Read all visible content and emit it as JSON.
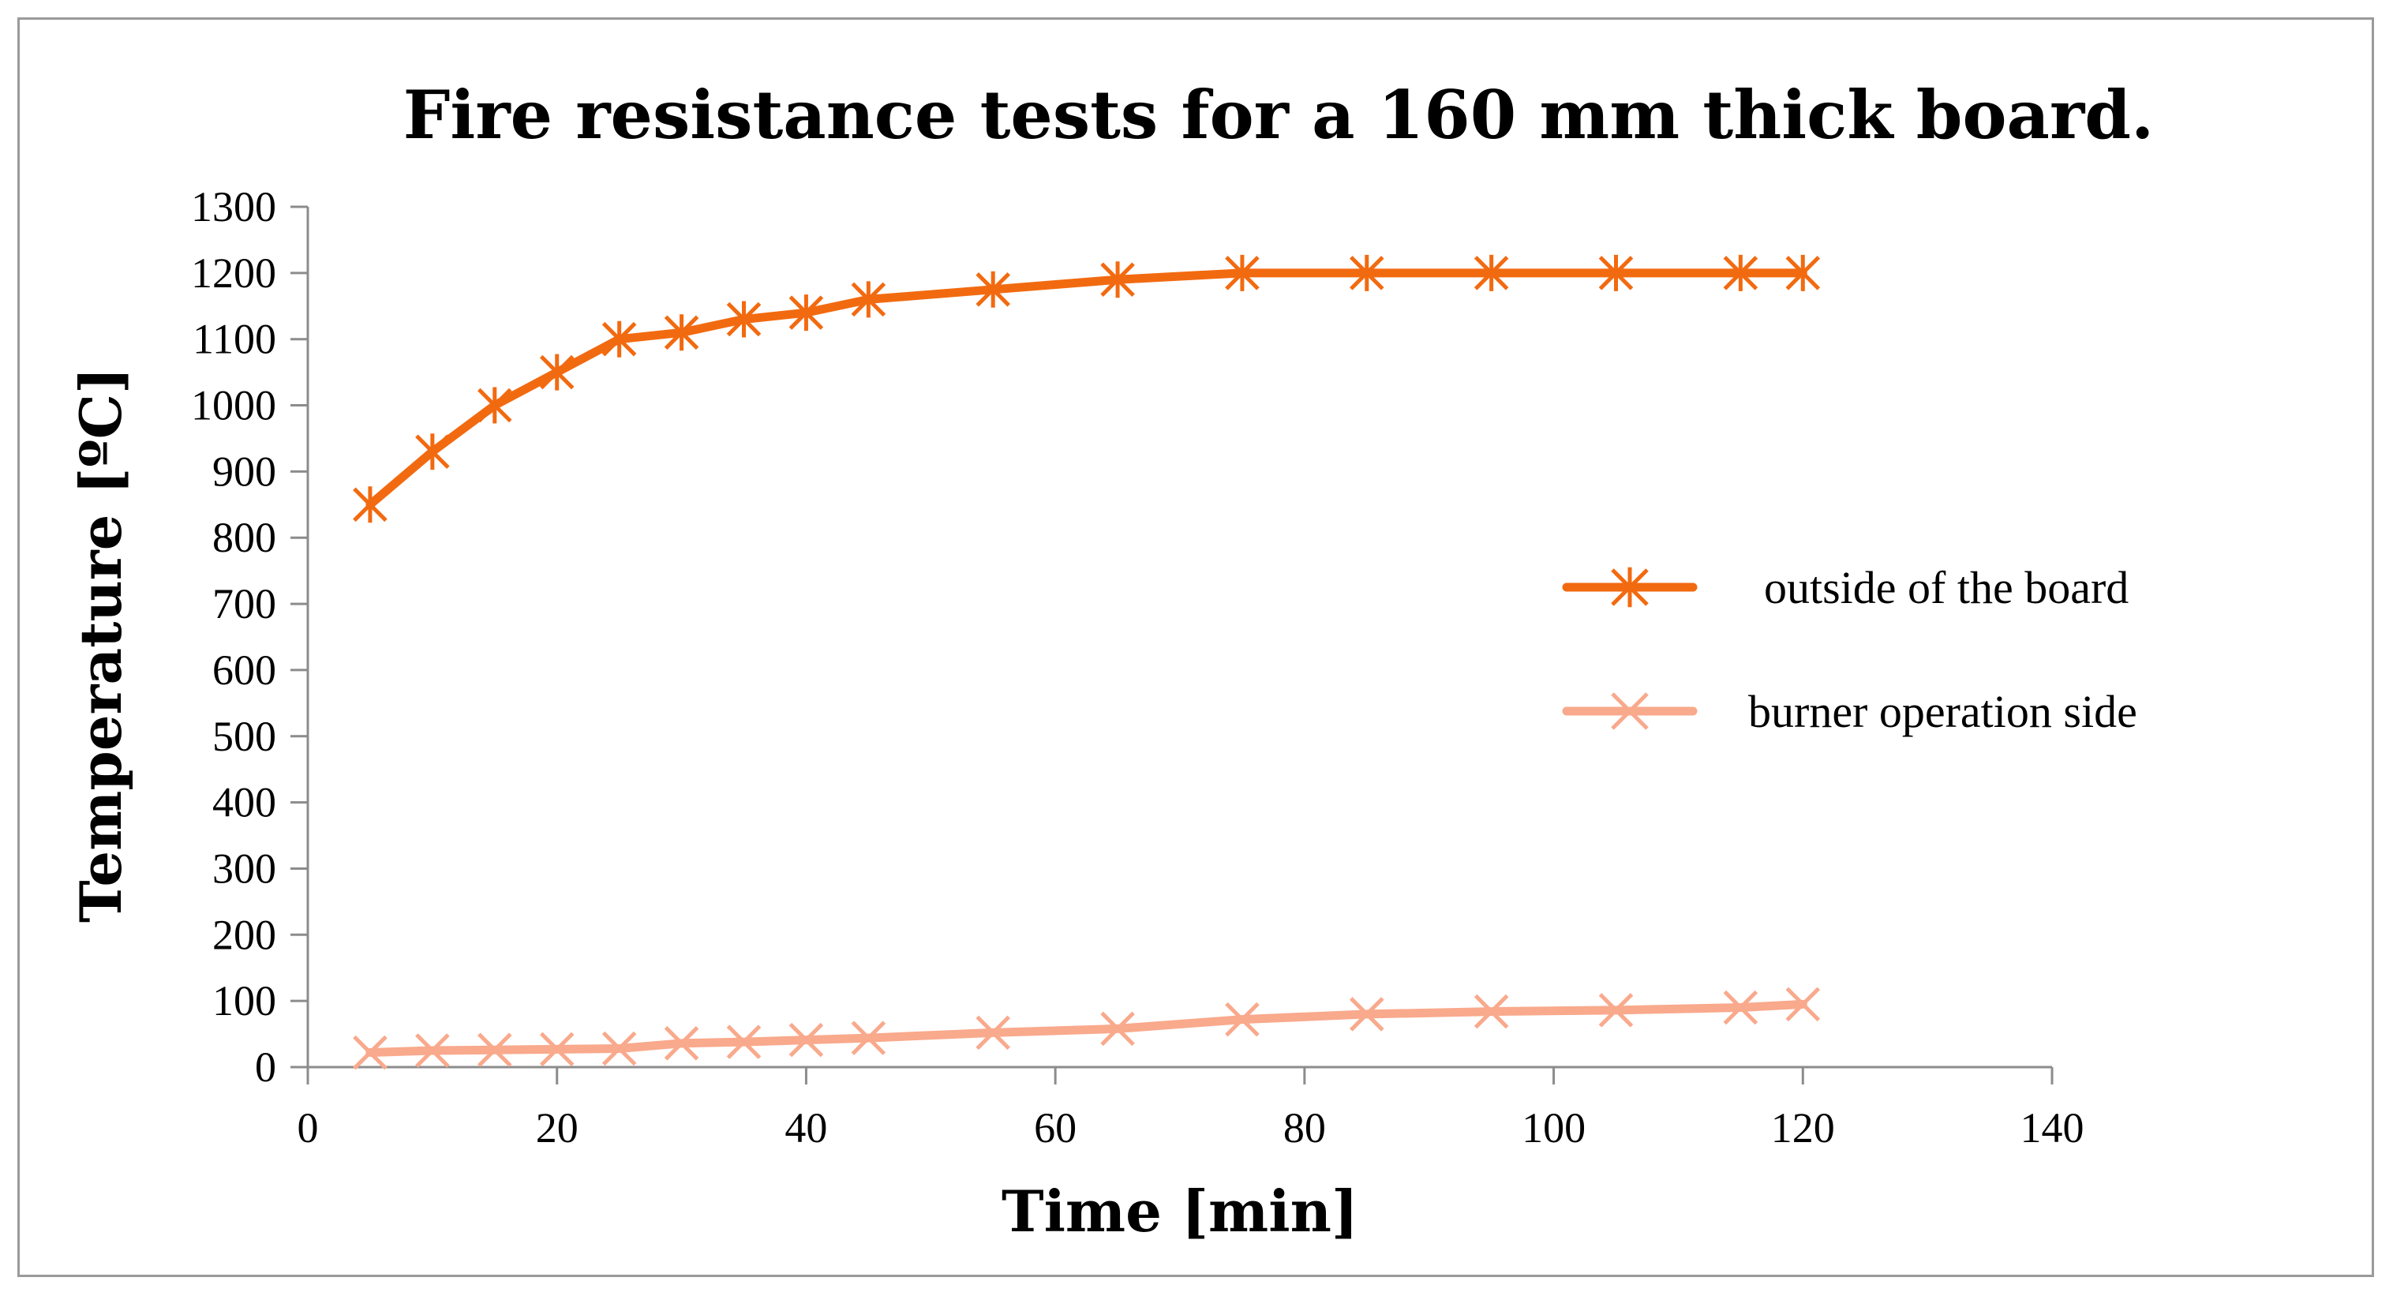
{
  "chart_data": {
    "type": "line",
    "title": "Fire resistance tests for a 160 mm thick board.",
    "xlabel": "Time [min]",
    "ylabel": "Temperature [ºC]",
    "xlim": [
      0,
      140
    ],
    "ylim": [
      0,
      1300
    ],
    "xticks": [
      0,
      20,
      40,
      60,
      80,
      100,
      120,
      140
    ],
    "yticks": [
      0,
      100,
      200,
      300,
      400,
      500,
      600,
      700,
      800,
      900,
      1000,
      1100,
      1200,
      1300
    ],
    "xtick_labels": [
      "0",
      "20",
      "40",
      "60",
      "80",
      "100",
      "120",
      "140"
    ],
    "ytick_labels": [
      "0",
      "100",
      "200",
      "300",
      "400",
      "500",
      "600",
      "700",
      "800",
      "900",
      "1000",
      "1100",
      "1200",
      "1300"
    ],
    "grid": false,
    "legend_position": "right",
    "series": [
      {
        "name": "outside of the board",
        "marker": "asterisk",
        "color": "#F26A10",
        "x": [
          5,
          10,
          15,
          20,
          25,
          30,
          35,
          40,
          45,
          55,
          65,
          75,
          85,
          95,
          105,
          115,
          120
        ],
        "y": [
          850,
          930,
          1000,
          1050,
          1100,
          1110,
          1130,
          1140,
          1160,
          1175,
          1190,
          1200,
          1200,
          1200,
          1200,
          1200,
          1200
        ]
      },
      {
        "name": "burner operation side",
        "marker": "x",
        "color": "#F9A98C",
        "x": [
          5,
          10,
          15,
          20,
          25,
          30,
          35,
          40,
          45,
          55,
          65,
          75,
          85,
          95,
          105,
          115,
          120
        ],
        "y": [
          22,
          25,
          26,
          27,
          28,
          36,
          38,
          41,
          44,
          52,
          58,
          72,
          80,
          84,
          86,
          90,
          95
        ]
      }
    ]
  }
}
